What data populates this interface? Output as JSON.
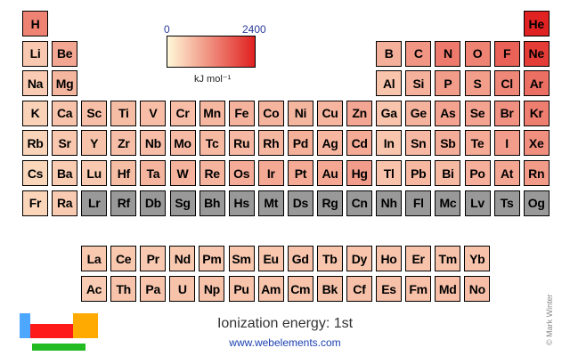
{
  "title": "Ionization energy: 1st",
  "website": "www.webelements.com",
  "copyright": "© Mark Winter",
  "legend": {
    "min_label": "0",
    "max_label": "2400",
    "unit": "kJ mol⁻¹",
    "min": 0,
    "max": 2400
  },
  "colors": {
    "low": "#fff8d8",
    "high": "#e02020",
    "no_data": "#999999"
  },
  "logo_colors": {
    "s_block": "#4da6ff",
    "d_block": "#ff1a1a",
    "p_block": "#ffaa00",
    "f_block": "#22bb22"
  },
  "elements": [
    {
      "symbol": "H",
      "period": 1,
      "group": 1,
      "ie": 1312
    },
    {
      "symbol": "He",
      "period": 1,
      "group": 18,
      "ie": 2372
    },
    {
      "symbol": "Li",
      "period": 2,
      "group": 1,
      "ie": 520
    },
    {
      "symbol": "Be",
      "period": 2,
      "group": 2,
      "ie": 900
    },
    {
      "symbol": "B",
      "period": 2,
      "group": 13,
      "ie": 801
    },
    {
      "symbol": "C",
      "period": 2,
      "group": 14,
      "ie": 1086
    },
    {
      "symbol": "N",
      "period": 2,
      "group": 15,
      "ie": 1402
    },
    {
      "symbol": "O",
      "period": 2,
      "group": 16,
      "ie": 1314
    },
    {
      "symbol": "F",
      "period": 2,
      "group": 17,
      "ie": 1681
    },
    {
      "symbol": "Ne",
      "period": 2,
      "group": 18,
      "ie": 2081
    },
    {
      "symbol": "Na",
      "period": 3,
      "group": 1,
      "ie": 496
    },
    {
      "symbol": "Mg",
      "period": 3,
      "group": 2,
      "ie": 738
    },
    {
      "symbol": "Al",
      "period": 3,
      "group": 13,
      "ie": 578
    },
    {
      "symbol": "Si",
      "period": 3,
      "group": 14,
      "ie": 787
    },
    {
      "symbol": "P",
      "period": 3,
      "group": 15,
      "ie": 1012
    },
    {
      "symbol": "S",
      "period": 3,
      "group": 16,
      "ie": 1000
    },
    {
      "symbol": "Cl",
      "period": 3,
      "group": 17,
      "ie": 1251
    },
    {
      "symbol": "Ar",
      "period": 3,
      "group": 18,
      "ie": 1521
    },
    {
      "symbol": "K",
      "period": 4,
      "group": 1,
      "ie": 419
    },
    {
      "symbol": "Ca",
      "period": 4,
      "group": 2,
      "ie": 590
    },
    {
      "symbol": "Sc",
      "period": 4,
      "group": 3,
      "ie": 633
    },
    {
      "symbol": "Ti",
      "period": 4,
      "group": 4,
      "ie": 659
    },
    {
      "symbol": "V",
      "period": 4,
      "group": 5,
      "ie": 651
    },
    {
      "symbol": "Cr",
      "period": 4,
      "group": 6,
      "ie": 653
    },
    {
      "symbol": "Mn",
      "period": 4,
      "group": 7,
      "ie": 717
    },
    {
      "symbol": "Fe",
      "period": 4,
      "group": 8,
      "ie": 762
    },
    {
      "symbol": "Co",
      "period": 4,
      "group": 9,
      "ie": 760
    },
    {
      "symbol": "Ni",
      "period": 4,
      "group": 10,
      "ie": 737
    },
    {
      "symbol": "Cu",
      "period": 4,
      "group": 11,
      "ie": 745
    },
    {
      "symbol": "Zn",
      "period": 4,
      "group": 12,
      "ie": 906
    },
    {
      "symbol": "Ga",
      "period": 4,
      "group": 13,
      "ie": 579
    },
    {
      "symbol": "Ge",
      "period": 4,
      "group": 14,
      "ie": 762
    },
    {
      "symbol": "As",
      "period": 4,
      "group": 15,
      "ie": 947
    },
    {
      "symbol": "Se",
      "period": 4,
      "group": 16,
      "ie": 941
    },
    {
      "symbol": "Br",
      "period": 4,
      "group": 17,
      "ie": 1140
    },
    {
      "symbol": "Kr",
      "period": 4,
      "group": 18,
      "ie": 1351
    },
    {
      "symbol": "Rb",
      "period": 5,
      "group": 1,
      "ie": 403
    },
    {
      "symbol": "Sr",
      "period": 5,
      "group": 2,
      "ie": 550
    },
    {
      "symbol": "Y",
      "period": 5,
      "group": 3,
      "ie": 600
    },
    {
      "symbol": "Zr",
      "period": 5,
      "group": 4,
      "ie": 640
    },
    {
      "symbol": "Nb",
      "period": 5,
      "group": 5,
      "ie": 652
    },
    {
      "symbol": "Mo",
      "period": 5,
      "group": 6,
      "ie": 684
    },
    {
      "symbol": "Tc",
      "period": 5,
      "group": 7,
      "ie": 702
    },
    {
      "symbol": "Ru",
      "period": 5,
      "group": 8,
      "ie": 710
    },
    {
      "symbol": "Rh",
      "period": 5,
      "group": 9,
      "ie": 720
    },
    {
      "symbol": "Pd",
      "period": 5,
      "group": 10,
      "ie": 804
    },
    {
      "symbol": "Ag",
      "period": 5,
      "group": 11,
      "ie": 731
    },
    {
      "symbol": "Cd",
      "period": 5,
      "group": 12,
      "ie": 868
    },
    {
      "symbol": "In",
      "period": 5,
      "group": 13,
      "ie": 558
    },
    {
      "symbol": "Sn",
      "period": 5,
      "group": 14,
      "ie": 709
    },
    {
      "symbol": "Sb",
      "period": 5,
      "group": 15,
      "ie": 834
    },
    {
      "symbol": "Te",
      "period": 5,
      "group": 16,
      "ie": 869
    },
    {
      "symbol": "I",
      "period": 5,
      "group": 17,
      "ie": 1008
    },
    {
      "symbol": "Xe",
      "period": 5,
      "group": 18,
      "ie": 1170
    },
    {
      "symbol": "Cs",
      "period": 6,
      "group": 1,
      "ie": 376
    },
    {
      "symbol": "Ba",
      "period": 6,
      "group": 2,
      "ie": 503
    },
    {
      "symbol": "Lu",
      "period": 6,
      "group": 3,
      "ie": 524
    },
    {
      "symbol": "Hf",
      "period": 6,
      "group": 4,
      "ie": 659
    },
    {
      "symbol": "Ta",
      "period": 6,
      "group": 5,
      "ie": 761
    },
    {
      "symbol": "W",
      "period": 6,
      "group": 6,
      "ie": 770
    },
    {
      "symbol": "Re",
      "period": 6,
      "group": 7,
      "ie": 760
    },
    {
      "symbol": "Os",
      "period": 6,
      "group": 8,
      "ie": 840
    },
    {
      "symbol": "Ir",
      "period": 6,
      "group": 9,
      "ie": 880
    },
    {
      "symbol": "Pt",
      "period": 6,
      "group": 10,
      "ie": 870
    },
    {
      "symbol": "Au",
      "period": 6,
      "group": 11,
      "ie": 890
    },
    {
      "symbol": "Hg",
      "period": 6,
      "group": 12,
      "ie": 1007
    },
    {
      "symbol": "Tl",
      "period": 6,
      "group": 13,
      "ie": 589
    },
    {
      "symbol": "Pb",
      "period": 6,
      "group": 14,
      "ie": 716
    },
    {
      "symbol": "Bi",
      "period": 6,
      "group": 15,
      "ie": 703
    },
    {
      "symbol": "Po",
      "period": 6,
      "group": 16,
      "ie": 812
    },
    {
      "symbol": "At",
      "period": 6,
      "group": 17,
      "ie": 899
    },
    {
      "symbol": "Rn",
      "period": 6,
      "group": 18,
      "ie": 1037
    },
    {
      "symbol": "Fr",
      "period": 7,
      "group": 1,
      "ie": 393
    },
    {
      "symbol": "Ra",
      "period": 7,
      "group": 2,
      "ie": 509
    },
    {
      "symbol": "Lr",
      "period": 7,
      "group": 3,
      "ie": null
    },
    {
      "symbol": "Rf",
      "period": 7,
      "group": 4,
      "ie": null
    },
    {
      "symbol": "Db",
      "period": 7,
      "group": 5,
      "ie": null
    },
    {
      "symbol": "Sg",
      "period": 7,
      "group": 6,
      "ie": null
    },
    {
      "symbol": "Bh",
      "period": 7,
      "group": 7,
      "ie": null
    },
    {
      "symbol": "Hs",
      "period": 7,
      "group": 8,
      "ie": null
    },
    {
      "symbol": "Mt",
      "period": 7,
      "group": 9,
      "ie": null
    },
    {
      "symbol": "Ds",
      "period": 7,
      "group": 10,
      "ie": null
    },
    {
      "symbol": "Rg",
      "period": 7,
      "group": 11,
      "ie": null
    },
    {
      "symbol": "Cn",
      "period": 7,
      "group": 12,
      "ie": null
    },
    {
      "symbol": "Nh",
      "period": 7,
      "group": 13,
      "ie": null
    },
    {
      "symbol": "Fl",
      "period": 7,
      "group": 14,
      "ie": null
    },
    {
      "symbol": "Mc",
      "period": 7,
      "group": 15,
      "ie": null
    },
    {
      "symbol": "Lv",
      "period": 7,
      "group": 16,
      "ie": null
    },
    {
      "symbol": "Ts",
      "period": 7,
      "group": 17,
      "ie": null
    },
    {
      "symbol": "Og",
      "period": 7,
      "group": 18,
      "ie": null
    }
  ],
  "lanthanides": [
    {
      "symbol": "La",
      "ie": 538
    },
    {
      "symbol": "Ce",
      "ie": 534
    },
    {
      "symbol": "Pr",
      "ie": 527
    },
    {
      "symbol": "Nd",
      "ie": 533
    },
    {
      "symbol": "Pm",
      "ie": 540
    },
    {
      "symbol": "Sm",
      "ie": 545
    },
    {
      "symbol": "Eu",
      "ie": 547
    },
    {
      "symbol": "Gd",
      "ie": 593
    },
    {
      "symbol": "Tb",
      "ie": 566
    },
    {
      "symbol": "Dy",
      "ie": 573
    },
    {
      "symbol": "Ho",
      "ie": 581
    },
    {
      "symbol": "Er",
      "ie": 589
    },
    {
      "symbol": "Tm",
      "ie": 597
    },
    {
      "symbol": "Yb",
      "ie": 603
    }
  ],
  "actinides": [
    {
      "symbol": "Ac",
      "ie": 499
    },
    {
      "symbol": "Th",
      "ie": 587
    },
    {
      "symbol": "Pa",
      "ie": 568
    },
    {
      "symbol": "U",
      "ie": 598
    },
    {
      "symbol": "Np",
      "ie": 605
    },
    {
      "symbol": "Pu",
      "ie": 585
    },
    {
      "symbol": "Am",
      "ie": 578
    },
    {
      "symbol": "Cm",
      "ie": 581
    },
    {
      "symbol": "Bk",
      "ie": 601
    },
    {
      "symbol": "Cf",
      "ie": 608
    },
    {
      "symbol": "Es",
      "ie": 619
    },
    {
      "symbol": "Fm",
      "ie": 627
    },
    {
      "symbol": "Md",
      "ie": 635
    },
    {
      "symbol": "No",
      "ie": 642
    }
  ]
}
